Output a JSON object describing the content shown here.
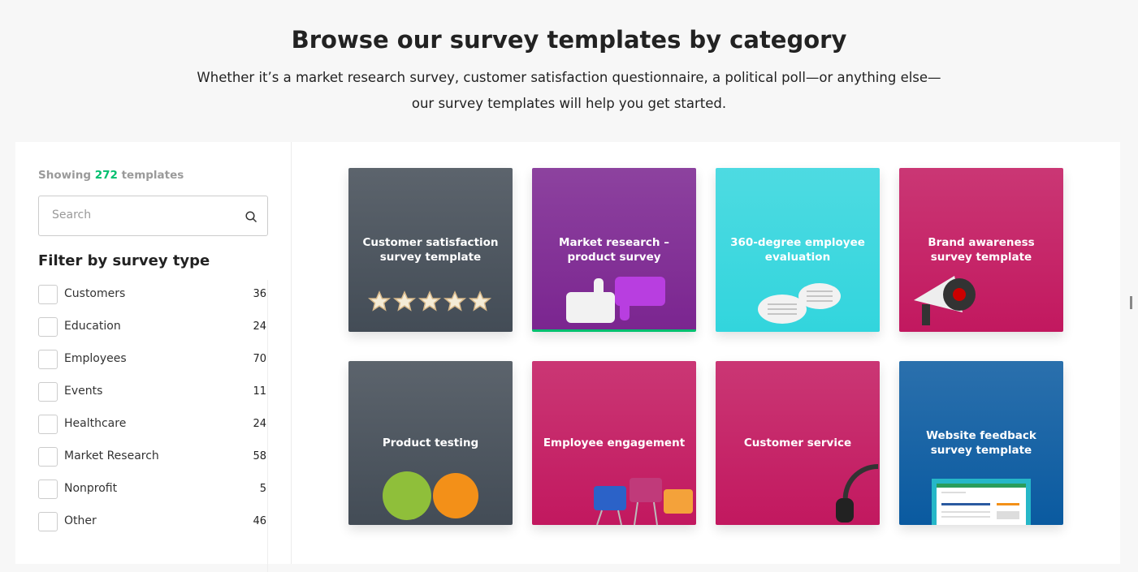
{
  "header": {
    "title": "Browse our survey templates by category",
    "subtitle_line1": "Whether it’s a market research survey, customer satisfaction questionnaire, a political poll—or anything else—",
    "subtitle_line2": "our survey templates will help you get started."
  },
  "sidebar": {
    "showing_prefix": "Showing",
    "showing_count": "272",
    "showing_suffix": "templates",
    "search_placeholder": "Search",
    "filter_heading": "Filter by survey type",
    "filters": [
      {
        "label": "Customers",
        "count": "36"
      },
      {
        "label": "Education",
        "count": "24"
      },
      {
        "label": "Employees",
        "count": "70"
      },
      {
        "label": "Events",
        "count": "11"
      },
      {
        "label": "Healthcare",
        "count": "24"
      },
      {
        "label": "Market Research",
        "count": "58"
      },
      {
        "label": "Nonprofit",
        "count": "5"
      },
      {
        "label": "Other",
        "count": "46"
      }
    ]
  },
  "cards": [
    {
      "title": "Customer satisfaction survey template",
      "color": "#434c56",
      "icon": "stars"
    },
    {
      "title": "Market research – product survey",
      "color": "#7b2590",
      "icon": "thumbs-up-down"
    },
    {
      "title": "360-degree employee evaluation",
      "color": "#32d5dd",
      "icon": "speech-bubbles"
    },
    {
      "title": "Brand awareness survey template",
      "color": "#c2185f",
      "icon": "megaphone"
    },
    {
      "title": "Product testing",
      "color": "#434c56",
      "icon": "apple-orange"
    },
    {
      "title": "Employee engagement",
      "color": "#c2185f",
      "icon": "binder-clips"
    },
    {
      "title": "Customer service",
      "color": "#c2185f",
      "icon": "headset"
    },
    {
      "title": "Website feedback survey template",
      "color": "#0a5aa0",
      "icon": "browser-window"
    }
  ],
  "colors": {
    "accent": "#00bf6f"
  }
}
